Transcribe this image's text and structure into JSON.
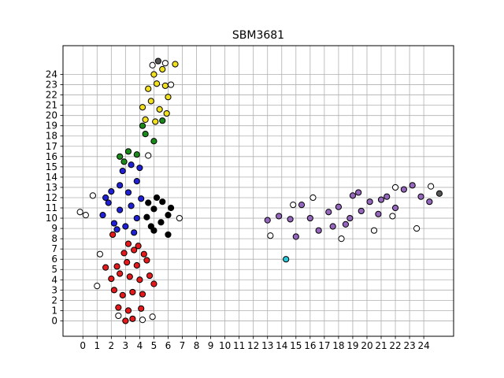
{
  "chart_data": {
    "type": "scatter",
    "title": "SBM3681",
    "xlabel": "",
    "ylabel": "",
    "xlim": [
      -1.4,
      26.1
    ],
    "ylim": [
      -1.5,
      26.8
    ],
    "x_ticks": [
      0,
      1,
      2,
      3,
      4,
      5,
      6,
      7,
      8,
      9,
      10,
      11,
      12,
      13,
      14,
      15,
      16,
      17,
      18,
      19,
      20,
      21,
      22,
      23,
      24
    ],
    "y_ticks": [
      0,
      1,
      2,
      3,
      4,
      5,
      6,
      7,
      8,
      9,
      10,
      11,
      12,
      13,
      14,
      15,
      16,
      17,
      18,
      19,
      20,
      21,
      22,
      23,
      24
    ],
    "grid": true,
    "legend": null,
    "series": [
      {
        "name": "red",
        "color": "#e41a1c",
        "points": [
          [
            3.5,
            0.2
          ],
          [
            2.5,
            1.3
          ],
          [
            3.2,
            1.0
          ],
          [
            4.1,
            1.2
          ],
          [
            2.2,
            3.0
          ],
          [
            2.8,
            2.5
          ],
          [
            3.5,
            2.8
          ],
          [
            4.2,
            2.6
          ],
          [
            2.0,
            4.1
          ],
          [
            2.6,
            4.6
          ],
          [
            3.3,
            4.3
          ],
          [
            4.0,
            4.0
          ],
          [
            4.7,
            4.4
          ],
          [
            2.4,
            5.3
          ],
          [
            3.1,
            5.7
          ],
          [
            3.8,
            5.4
          ],
          [
            4.5,
            5.9
          ],
          [
            2.9,
            6.6
          ],
          [
            3.6,
            6.9
          ],
          [
            4.3,
            6.5
          ],
          [
            3.2,
            7.5
          ],
          [
            3.9,
            7.3
          ],
          [
            1.6,
            5.2
          ],
          [
            5.0,
            3.6
          ],
          [
            2.1,
            8.4
          ],
          [
            3.0,
            0.0
          ]
        ]
      },
      {
        "name": "blue",
        "color": "#1f1fd6",
        "points": [
          [
            1.4,
            10.3
          ],
          [
            1.8,
            11.5
          ],
          [
            2.2,
            9.5
          ],
          [
            2.6,
            10.8
          ],
          [
            3.0,
            9.2
          ],
          [
            3.4,
            11.2
          ],
          [
            3.8,
            10.0
          ],
          [
            2.0,
            12.6
          ],
          [
            2.6,
            13.2
          ],
          [
            3.2,
            12.5
          ],
          [
            3.8,
            13.6
          ],
          [
            2.8,
            14.6
          ],
          [
            3.4,
            15.2
          ],
          [
            4.0,
            14.9
          ],
          [
            1.6,
            12.0
          ],
          [
            4.1,
            11.9
          ],
          [
            2.4,
            8.9
          ],
          [
            3.6,
            8.6
          ]
        ]
      },
      {
        "name": "black",
        "color": "#000000",
        "points": [
          [
            4.5,
            10.1
          ],
          [
            5.0,
            10.9
          ],
          [
            5.5,
            9.6
          ],
          [
            6.0,
            10.3
          ],
          [
            4.8,
            9.2
          ],
          [
            5.6,
            11.6
          ],
          [
            6.2,
            11.0
          ],
          [
            5.2,
            12.0
          ],
          [
            4.6,
            11.5
          ],
          [
            6.0,
            8.4
          ],
          [
            5.0,
            8.8
          ]
        ]
      },
      {
        "name": "green",
        "color": "#1a8a1a",
        "points": [
          [
            2.6,
            16.0
          ],
          [
            3.2,
            16.5
          ],
          [
            3.8,
            16.2
          ],
          [
            4.4,
            18.2
          ],
          [
            5.0,
            17.5
          ],
          [
            5.6,
            19.5
          ],
          [
            4.2,
            19.0
          ],
          [
            2.9,
            15.5
          ]
        ]
      },
      {
        "name": "yellow",
        "color": "#f0e020",
        "points": [
          [
            4.2,
            20.8
          ],
          [
            4.8,
            21.4
          ],
          [
            5.4,
            20.6
          ],
          [
            6.0,
            21.8
          ],
          [
            4.6,
            22.6
          ],
          [
            5.2,
            23.1
          ],
          [
            5.8,
            22.9
          ],
          [
            5.0,
            24.0
          ],
          [
            5.6,
            24.5
          ],
          [
            4.4,
            19.6
          ],
          [
            5.9,
            20.2
          ],
          [
            6.5,
            25.0
          ],
          [
            5.1,
            19.4
          ]
        ]
      },
      {
        "name": "purple",
        "color": "#9467bd",
        "points": [
          [
            13.0,
            9.8
          ],
          [
            13.8,
            10.2
          ],
          [
            14.6,
            9.9
          ],
          [
            15.4,
            11.3
          ],
          [
            16.0,
            10.0
          ],
          [
            16.6,
            8.8
          ],
          [
            17.3,
            10.6
          ],
          [
            18.0,
            11.1
          ],
          [
            18.5,
            9.4
          ],
          [
            19.0,
            12.2
          ],
          [
            19.6,
            10.7
          ],
          [
            20.2,
            11.6
          ],
          [
            20.8,
            10.4
          ],
          [
            21.4,
            12.1
          ],
          [
            22.0,
            11.0
          ],
          [
            22.6,
            12.8
          ],
          [
            23.2,
            13.2
          ],
          [
            23.8,
            12.1
          ],
          [
            24.4,
            11.6
          ],
          [
            19.4,
            12.5
          ],
          [
            17.6,
            9.2
          ],
          [
            21.0,
            11.8
          ],
          [
            15.0,
            8.2
          ],
          [
            18.8,
            10.0
          ]
        ]
      },
      {
        "name": "cyan",
        "color": "#2ac8d8",
        "points": [
          [
            14.3,
            6.0
          ]
        ]
      },
      {
        "name": "unassigned",
        "color": "#ffffff",
        "points": [
          [
            -0.2,
            10.6
          ],
          [
            0.2,
            10.3
          ],
          [
            0.7,
            12.2
          ],
          [
            1.2,
            6.5
          ],
          [
            1.0,
            3.4
          ],
          [
            2.5,
            0.5
          ],
          [
            4.2,
            0.1
          ],
          [
            4.9,
            0.4
          ],
          [
            4.9,
            24.9
          ],
          [
            5.8,
            25.1
          ],
          [
            6.2,
            23.0
          ],
          [
            4.6,
            16.1
          ],
          [
            6.8,
            10.0
          ],
          [
            13.2,
            8.3
          ],
          [
            14.8,
            11.3
          ],
          [
            16.2,
            12.0
          ],
          [
            18.2,
            8.0
          ],
          [
            20.5,
            8.8
          ],
          [
            22.0,
            13.0
          ],
          [
            23.5,
            9.0
          ],
          [
            24.5,
            13.1
          ],
          [
            21.8,
            10.2
          ]
        ]
      },
      {
        "name": "gray",
        "color": "#555555",
        "points": [
          [
            5.3,
            25.3
          ],
          [
            25.1,
            12.4
          ]
        ]
      }
    ]
  }
}
